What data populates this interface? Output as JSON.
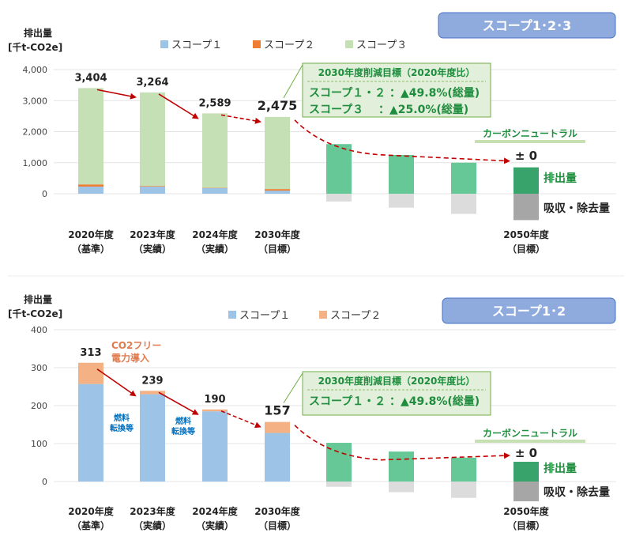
{
  "colors": {
    "scope1": "#9DC3E6",
    "scope2": "#ED7D31",
    "scope2_light": "#F4B183",
    "scope3": "#C5E0B4",
    "future": "#66C896",
    "future_dark": "#38A36A",
    "removal": "#DCDCDC",
    "removal_dark": "#A6A6A6",
    "arrow": "#C00000",
    "callout_fill": "#E2EFDA",
    "callout_text": "#1E8E3E",
    "scope_badge_fill": "#8FAADC",
    "scope2_annot": "#E07B4F",
    "fuel_annot": "#0070C0"
  },
  "charts": [
    {
      "badge": "スコープ1･2･3",
      "yunit": "排出量",
      "yunit2": "[千t-CO2e]",
      "legend": [
        "スコープ１",
        "スコープ２",
        "スコープ３"
      ],
      "ticks": [
        "4,000",
        "3,000",
        "2,000",
        "1,000",
        "0"
      ],
      "total_labels": [
        "3,404",
        "3,264",
        "2,589",
        "2,475"
      ],
      "xlabels": [
        [
          "2020年度",
          "（基準）"
        ],
        [
          "2023年度",
          "（実績）"
        ],
        [
          "2024年度",
          "（実績）"
        ],
        [
          "2030年度",
          "（目標）"
        ],
        [
          "2050年度",
          "（目標）"
        ]
      ],
      "callout_title": "2030年度削減目標（2020年度比）",
      "callout_lines": [
        "スコープ１・２ ：▲49.8%(総量)",
        "スコープ３　 ：▲25.0%(総量)"
      ],
      "neutral_label": "カーボンニュートラル",
      "zero_label": "± 0",
      "emission_label": "排出量",
      "removal_label": "吸収・除去量",
      "annotations": []
    },
    {
      "badge": "スコープ1･2",
      "yunit": "排出量",
      "yunit2": "[千t-CO2e]",
      "legend": [
        "スコープ１",
        "スコープ２"
      ],
      "ticks": [
        "400",
        "300",
        "200",
        "100",
        "0"
      ],
      "total_labels": [
        "313",
        "239",
        "190",
        "157"
      ],
      "xlabels": [
        [
          "2020年度",
          "（基準）"
        ],
        [
          "2023年度",
          "（実績）"
        ],
        [
          "2024年度",
          "（実績）"
        ],
        [
          "2030年度",
          "（目標）"
        ],
        [
          "2050年度",
          "（目標）"
        ]
      ],
      "callout_title": "2030年度削減目標（2020年度比）",
      "callout_lines": [
        "スコープ１・２ ：▲49.8%(総量)"
      ],
      "neutral_label": "カーボンニュートラル",
      "zero_label": "± 0",
      "emission_label": "排出量",
      "removal_label": "吸収・除去量",
      "annotations": [
        [
          "CO2フリー",
          "電力導入"
        ],
        [
          "燃料",
          "転換等"
        ],
        [
          "燃料",
          "転換等"
        ]
      ]
    }
  ],
  "chart_data": [
    {
      "type": "bar",
      "stacked": true,
      "ylabel": "排出量 [千t-CO2e]",
      "ylim": [
        0,
        4000
      ],
      "categories": [
        "2020年度（基準）",
        "2023年度（実績）",
        "2024年度（実績）",
        "2030年度（目標）",
        "",
        "",
        "",
        "2050年度（目標）"
      ],
      "series": [
        {
          "name": "スコープ１",
          "values": [
            230,
            230,
            180,
            100,
            null,
            null,
            null,
            null
          ]
        },
        {
          "name": "スコープ２",
          "values": [
            70,
            20,
            10,
            50,
            null,
            null,
            null,
            null
          ]
        },
        {
          "name": "スコープ３",
          "values": [
            3104,
            3014,
            2399,
            2325,
            null,
            null,
            null,
            null
          ]
        }
      ],
      "future_emissions": [
        null,
        null,
        null,
        null,
        1600,
        1250,
        1000,
        850
      ],
      "removals": [
        null,
        null,
        null,
        null,
        -250,
        -450,
        -650,
        -850
      ],
      "totals": [
        3404,
        3264,
        2589,
        2475,
        null,
        null,
        null,
        0
      ]
    },
    {
      "type": "bar",
      "stacked": true,
      "ylabel": "排出量 [千t-CO2e]",
      "ylim": [
        0,
        400
      ],
      "categories": [
        "2020年度（基準）",
        "2023年度（実績）",
        "2024年度（実績）",
        "2030年度（目標）",
        "",
        "",
        "",
        "2050年度（目標）"
      ],
      "series": [
        {
          "name": "スコープ１",
          "values": [
            257,
            230,
            185,
            128,
            null,
            null,
            null,
            null
          ]
        },
        {
          "name": "スコープ２",
          "values": [
            56,
            9,
            5,
            29,
            null,
            null,
            null,
            null
          ]
        }
      ],
      "future_emissions": [
        null,
        null,
        null,
        null,
        102,
        79,
        63,
        52
      ],
      "removals": [
        null,
        null,
        null,
        null,
        -14,
        -28,
        -43,
        -52
      ],
      "totals": [
        313,
        239,
        190,
        157,
        null,
        null,
        null,
        0
      ]
    }
  ]
}
